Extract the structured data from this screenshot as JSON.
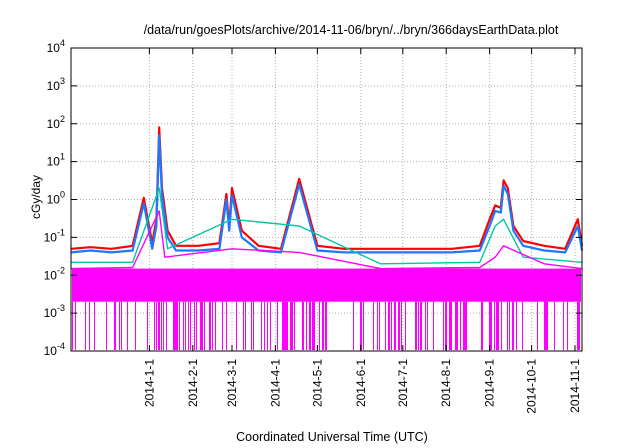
{
  "chart_data": {
    "type": "line",
    "title": "/data/run/goesPlots/archive/2014-11-06/bryn/../bryn/366daysEarthData.plot",
    "xlabel": "Coordinated Universal Time (UTC)",
    "ylabel": "cGy/day",
    "yscale": "log",
    "ylim": [
      0.0001,
      10000
    ],
    "xlim": [
      "2013-11-06",
      "2014-11-06"
    ],
    "grid": true,
    "legend": "none",
    "y_tick_labels": [
      {
        "base": "10",
        "exp": "-4"
      },
      {
        "base": "10",
        "exp": "-3"
      },
      {
        "base": "10",
        "exp": "-2"
      },
      {
        "base": "10",
        "exp": "-1"
      },
      {
        "base": "10",
        "exp": "0"
      },
      {
        "base": "10",
        "exp": "1"
      },
      {
        "base": "10",
        "exp": "2"
      },
      {
        "base": "10",
        "exp": "3"
      },
      {
        "base": "10",
        "exp": "4"
      }
    ],
    "x_ticks": [
      "2014-1-1",
      "2014-2-1",
      "2014-3-1",
      "2014-4-1",
      "2014-5-1",
      "2014-6-1",
      "2014-7-1",
      "2014-8-1",
      "2014-9-1",
      "2014-10-1",
      "2014-11-1"
    ],
    "series": [
      {
        "color": "#ff0000",
        "x": [
          "2013-11-06",
          "2013-11-20",
          "2013-12-05",
          "2013-12-20",
          "2013-12-28",
          "2014-01-03",
          "2014-01-06",
          "2014-01-08",
          "2014-01-10",
          "2014-01-14",
          "2014-01-20",
          "2014-02-05",
          "2014-02-20",
          "2014-02-25",
          "2014-02-27",
          "2014-03-01",
          "2014-03-08",
          "2014-03-20",
          "2014-04-05",
          "2014-04-18",
          "2014-05-01",
          "2014-05-20",
          "2014-06-15",
          "2014-07-10",
          "2014-08-05",
          "2014-08-25",
          "2014-09-01",
          "2014-09-05",
          "2014-09-09",
          "2014-09-11",
          "2014-09-14",
          "2014-09-18",
          "2014-09-25",
          "2014-10-10",
          "2014-10-25",
          "2014-11-03",
          "2014-11-06"
        ],
        "y": [
          0.05,
          0.055,
          0.05,
          0.06,
          1.1,
          0.07,
          0.3,
          80,
          2,
          0.15,
          0.06,
          0.06,
          0.07,
          1.4,
          0.2,
          2,
          0.15,
          0.06,
          0.05,
          3.5,
          0.06,
          0.05,
          0.05,
          0.05,
          0.05,
          0.06,
          0.3,
          0.7,
          0.6,
          3.2,
          2,
          0.2,
          0.08,
          0.06,
          0.05,
          0.3,
          0.06
        ]
      },
      {
        "color": "#1e78ff",
        "x": [
          "2013-11-06",
          "2013-11-20",
          "2013-12-05",
          "2013-12-20",
          "2013-12-28",
          "2014-01-03",
          "2014-01-06",
          "2014-01-08",
          "2014-01-10",
          "2014-01-14",
          "2014-01-20",
          "2014-02-05",
          "2014-02-20",
          "2014-02-25",
          "2014-02-27",
          "2014-03-01",
          "2014-03-08",
          "2014-03-20",
          "2014-04-05",
          "2014-04-18",
          "2014-05-01",
          "2014-05-20",
          "2014-06-15",
          "2014-07-10",
          "2014-08-05",
          "2014-08-25",
          "2014-09-01",
          "2014-09-05",
          "2014-09-09",
          "2014-09-11",
          "2014-09-14",
          "2014-09-18",
          "2014-09-25",
          "2014-10-10",
          "2014-10-25",
          "2014-11-03",
          "2014-11-06"
        ],
        "y": [
          0.04,
          0.045,
          0.04,
          0.045,
          0.8,
          0.05,
          0.2,
          50,
          1.2,
          0.1,
          0.045,
          0.045,
          0.05,
          1,
          0.15,
          1.3,
          0.1,
          0.045,
          0.04,
          2.5,
          0.045,
          0.04,
          0.04,
          0.04,
          0.04,
          0.045,
          0.2,
          0.5,
          0.45,
          2.3,
          1.4,
          0.15,
          0.06,
          0.045,
          0.04,
          0.2,
          0.045
        ]
      },
      {
        "color": "#00c8a0",
        "x": [
          "2013-11-06",
          "2013-12-20",
          "2014-01-08",
          "2014-01-14",
          "2014-03-01",
          "2014-04-18",
          "2014-06-15",
          "2014-08-25",
          "2014-09-05",
          "2014-09-11",
          "2014-09-25",
          "2014-11-06"
        ],
        "y": [
          0.022,
          0.022,
          2,
          0.05,
          0.3,
          0.2,
          0.02,
          0.022,
          0.2,
          0.3,
          0.03,
          0.022
        ]
      },
      {
        "color": "#ff00ff",
        "x": [
          "2013-11-06",
          "2013-12-20",
          "2014-01-08",
          "2014-01-12",
          "2014-03-01",
          "2014-04-18",
          "2014-06-15",
          "2014-08-25",
          "2014-09-05",
          "2014-09-11",
          "2014-10-10",
          "2014-11-06"
        ],
        "y": [
          0.015,
          0.016,
          0.5,
          0.03,
          0.05,
          0.04,
          0.015,
          0.016,
          0.03,
          0.06,
          0.02,
          0.015
        ]
      }
    ]
  }
}
